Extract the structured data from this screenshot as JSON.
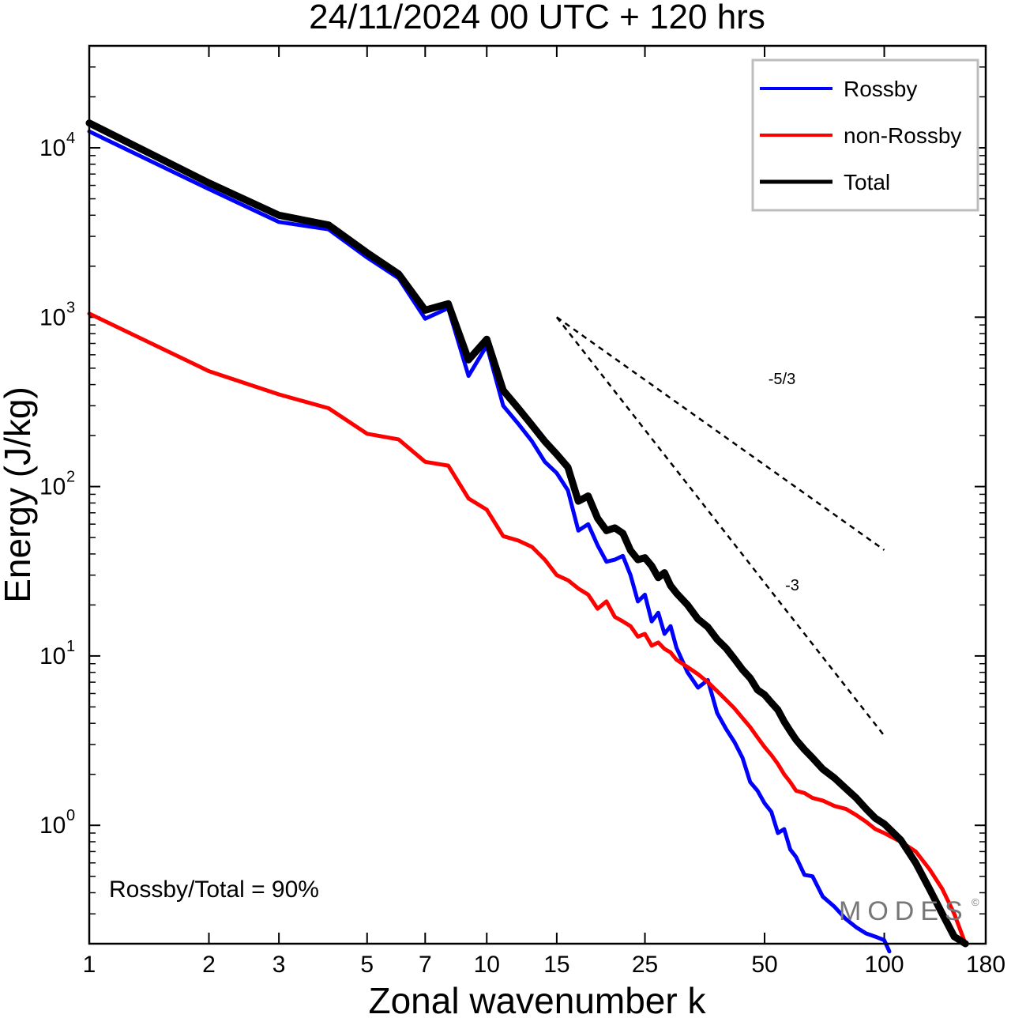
{
  "chart_data": {
    "type": "line",
    "title": "24/11/2024  00 UTC  + 120 hrs",
    "xlabel": "Zonal wavenumber k",
    "ylabel": "Energy (J/kg)",
    "xscale": "log",
    "yscale": "log",
    "xlim": [
      1,
      180
    ],
    "ylim": [
      0.2,
      40000
    ],
    "xticks": [
      {
        "value": 1,
        "label": "1"
      },
      {
        "value": 2,
        "label": "2"
      },
      {
        "value": 3,
        "label": "3"
      },
      {
        "value": 5,
        "label": "5"
      },
      {
        "value": 7,
        "label": "7"
      },
      {
        "value": 10,
        "label": "10"
      },
      {
        "value": 15,
        "label": "15"
      },
      {
        "value": 25,
        "label": "25"
      },
      {
        "value": 50,
        "label": "50"
      },
      {
        "value": 100,
        "label": "100"
      },
      {
        "value": 180,
        "label": "180"
      }
    ],
    "yticks": [
      {
        "value": 1,
        "base": "10",
        "exp": "0"
      },
      {
        "value": 10,
        "base": "10",
        "exp": "1"
      },
      {
        "value": 100,
        "base": "10",
        "exp": "2"
      },
      {
        "value": 1000,
        "base": "10",
        "exp": "3"
      },
      {
        "value": 10000,
        "base": "10",
        "exp": "4"
      }
    ],
    "legend_placement": "top-right",
    "series": [
      {
        "name": "Rossby",
        "color": "#0000ff",
        "x": [
          1,
          2,
          3,
          4,
          5,
          6,
          7,
          8,
          9,
          10,
          11,
          12,
          13,
          14,
          15,
          16,
          17,
          18,
          19,
          20,
          21,
          22,
          23,
          24,
          25,
          26,
          27,
          28,
          29,
          30,
          32,
          34,
          36,
          38,
          40,
          42,
          44,
          46,
          48,
          50,
          52,
          54,
          56,
          58,
          60,
          63,
          66,
          70,
          75,
          80,
          85,
          90,
          95,
          100,
          103
        ],
        "y": [
          12500,
          5700,
          3650,
          3300,
          2250,
          1700,
          980,
          1130,
          450,
          680,
          300,
          235,
          185,
          140,
          120,
          95,
          55,
          60,
          45,
          36,
          37,
          39,
          30,
          21,
          23,
          16,
          18,
          13.5,
          15,
          11.2,
          8,
          6.5,
          7.2,
          4.6,
          3.7,
          3.1,
          2.5,
          1.8,
          1.6,
          1.35,
          1.2,
          0.9,
          0.95,
          0.72,
          0.65,
          0.51,
          0.5,
          0.38,
          0.33,
          0.28,
          0.25,
          0.23,
          0.22,
          0.21,
          0.18
        ]
      },
      {
        "name": "non-Rossby",
        "color": "#ff0000",
        "x": [
          1,
          2,
          3,
          4,
          5,
          6,
          7,
          8,
          9,
          10,
          11,
          12,
          13,
          14,
          15,
          16,
          17,
          18,
          19,
          20,
          21,
          22,
          23,
          24,
          25,
          26,
          27,
          28,
          29,
          30,
          32,
          34,
          36,
          38,
          40,
          42,
          44,
          46,
          48,
          50,
          52,
          54,
          56,
          58,
          60,
          63,
          66,
          70,
          75,
          80,
          85,
          90,
          95,
          100,
          110,
          120,
          130,
          140,
          150,
          160
        ],
        "y": [
          1050,
          480,
          350,
          290,
          205,
          190,
          140,
          133,
          85,
          73,
          51,
          48,
          44,
          37,
          30,
          28,
          25,
          23,
          19,
          21,
          17,
          16,
          15,
          13,
          13.5,
          11.5,
          12,
          11,
          10.5,
          9.5,
          8.6,
          7.8,
          7.0,
          6.2,
          5.5,
          4.9,
          4.3,
          3.8,
          3.3,
          2.9,
          2.6,
          2.3,
          2.0,
          1.8,
          1.6,
          1.55,
          1.45,
          1.4,
          1.3,
          1.25,
          1.15,
          1.05,
          0.95,
          0.9,
          0.8,
          0.7,
          0.55,
          0.42,
          0.3,
          0.2
        ]
      },
      {
        "name": "Total",
        "color": "#000000",
        "x": [
          1,
          2,
          3,
          4,
          5,
          6,
          7,
          8,
          9,
          10,
          11,
          12,
          13,
          14,
          15,
          16,
          17,
          18,
          19,
          20,
          21,
          22,
          23,
          24,
          25,
          26,
          27,
          28,
          29,
          30,
          32,
          34,
          36,
          38,
          40,
          42,
          44,
          46,
          48,
          50,
          52,
          54,
          56,
          58,
          60,
          63,
          66,
          70,
          75,
          80,
          85,
          90,
          95,
          100,
          110,
          120,
          130,
          140,
          150,
          160
        ],
        "y": [
          14000,
          6200,
          4000,
          3500,
          2400,
          1800,
          1100,
          1200,
          560,
          740,
          370,
          290,
          230,
          185,
          155,
          130,
          82,
          88,
          65,
          55,
          57,
          53,
          42,
          37,
          38,
          34,
          29,
          31,
          26,
          23.5,
          20,
          16.5,
          14.8,
          12.5,
          11.1,
          9.6,
          8.3,
          7.4,
          6.3,
          5.9,
          5.3,
          4.8,
          4.1,
          3.6,
          3.2,
          2.8,
          2.5,
          2.15,
          1.9,
          1.65,
          1.45,
          1.25,
          1.1,
          1.02,
          0.82,
          0.6,
          0.42,
          0.3,
          0.22,
          0.2
        ]
      }
    ],
    "reference_lines": [
      {
        "label": "-5/3",
        "x": [
          15,
          100
        ],
        "y": [
          1000,
          42.2
        ]
      },
      {
        "label": "-3",
        "x": [
          15,
          100
        ],
        "y": [
          1000,
          3.38
        ]
      }
    ],
    "annotations": [
      "Rossby/Total = 90%"
    ]
  },
  "watermark": {
    "text": "MODES",
    "symbol": "©"
  }
}
